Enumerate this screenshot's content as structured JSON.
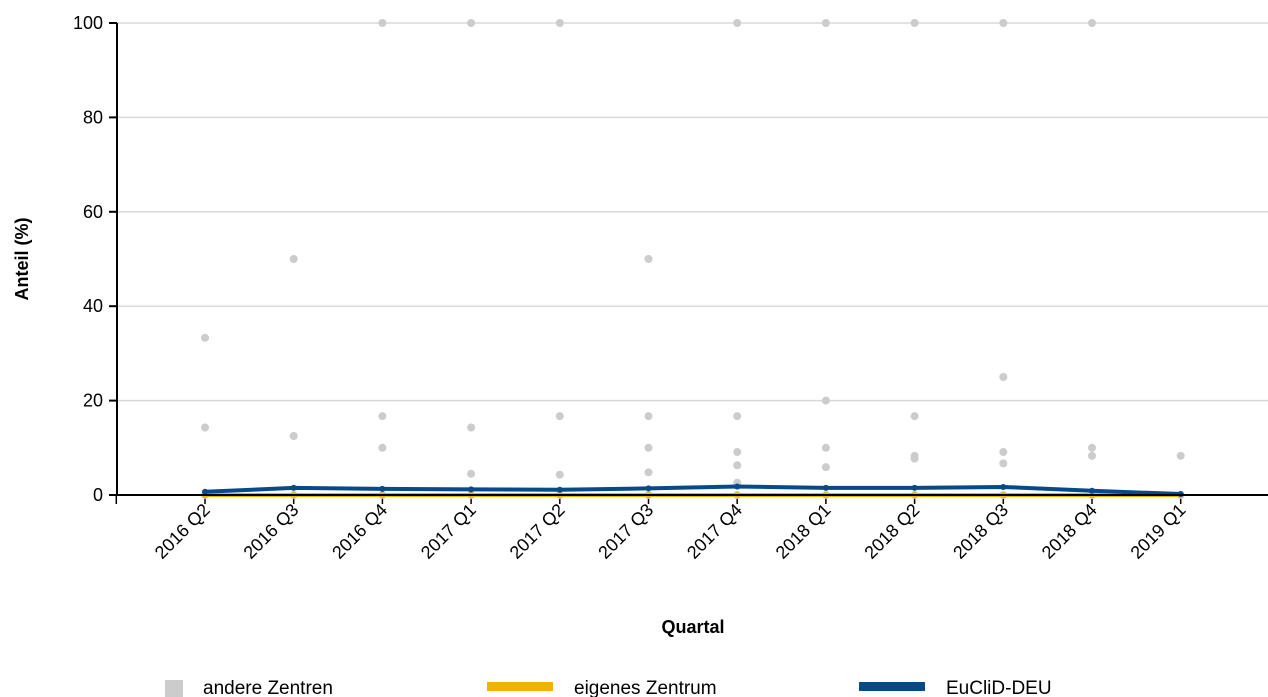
{
  "chart_data": {
    "type": "line",
    "xlabel": "Quartal",
    "ylabel": "Anteil (%)",
    "ylim": [
      0,
      100
    ],
    "yticks": [
      0,
      20,
      40,
      60,
      80,
      100
    ],
    "grid": true,
    "legend_position": "bottom",
    "categories": [
      "2016 Q2",
      "2016 Q3",
      "2016 Q4",
      "2017 Q1",
      "2017 Q2",
      "2017 Q3",
      "2017 Q4",
      "2018 Q1",
      "2018 Q2",
      "2018 Q3",
      "2018 Q4",
      "2019 Q1"
    ],
    "series": [
      {
        "name": "andere Zentren",
        "kind": "scatter",
        "color": "#cccccc",
        "points": [
          [
            0,
            33.3
          ],
          [
            0,
            14.3
          ],
          [
            0,
            0
          ],
          [
            1,
            50
          ],
          [
            1,
            12.5
          ],
          [
            1,
            0
          ],
          [
            2,
            100
          ],
          [
            2,
            16.7
          ],
          [
            2,
            10
          ],
          [
            2,
            0
          ],
          [
            3,
            100
          ],
          [
            3,
            14.3
          ],
          [
            3,
            4.5
          ],
          [
            3,
            0
          ],
          [
            4,
            100
          ],
          [
            4,
            16.7
          ],
          [
            4,
            4.3
          ],
          [
            4,
            0
          ],
          [
            5,
            50
          ],
          [
            5,
            16.7
          ],
          [
            5,
            10
          ],
          [
            5,
            4.8
          ],
          [
            5,
            0
          ],
          [
            6,
            100
          ],
          [
            6,
            16.7
          ],
          [
            6,
            9.1
          ],
          [
            6,
            6.3
          ],
          [
            6,
            2.6
          ],
          [
            6,
            2.0
          ],
          [
            6,
            0
          ],
          [
            7,
            100
          ],
          [
            7,
            20
          ],
          [
            7,
            10
          ],
          [
            7,
            5.9
          ],
          [
            7,
            0
          ],
          [
            8,
            100
          ],
          [
            8,
            16.7
          ],
          [
            8,
            8.3
          ],
          [
            8,
            7.7
          ],
          [
            8,
            0
          ],
          [
            9,
            100
          ],
          [
            9,
            25
          ],
          [
            9,
            9.1
          ],
          [
            9,
            6.7
          ],
          [
            9,
            0
          ],
          [
            10,
            100
          ],
          [
            10,
            10
          ],
          [
            10,
            8.3
          ],
          [
            10,
            0
          ],
          [
            11,
            8.3
          ],
          [
            11,
            0
          ]
        ]
      },
      {
        "name": "eigenes Zentrum",
        "kind": "line",
        "color": "#f0b400",
        "values": [
          0,
          0,
          0,
          0,
          0,
          0,
          0,
          0,
          0,
          0,
          0,
          0
        ]
      },
      {
        "name": "EuCliD-DEU",
        "kind": "line",
        "color": "#064a8a",
        "values": [
          0.7,
          1.5,
          1.3,
          1.2,
          1.1,
          1.4,
          1.8,
          1.5,
          1.5,
          1.7,
          0.9,
          0.2
        ]
      }
    ]
  }
}
